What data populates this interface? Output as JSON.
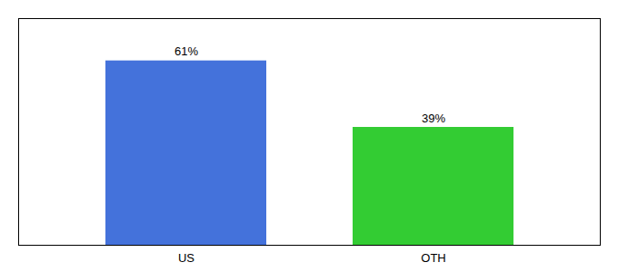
{
  "chart_data": {
    "type": "bar",
    "categories": [
      "US",
      "OTH"
    ],
    "values": [
      61,
      39
    ],
    "value_labels": [
      "61%",
      "39%"
    ],
    "colors": [
      "#4472db",
      "#33cc33"
    ],
    "ylim": [
      0,
      75
    ],
    "data_labels": true,
    "tick_labels": "x"
  }
}
